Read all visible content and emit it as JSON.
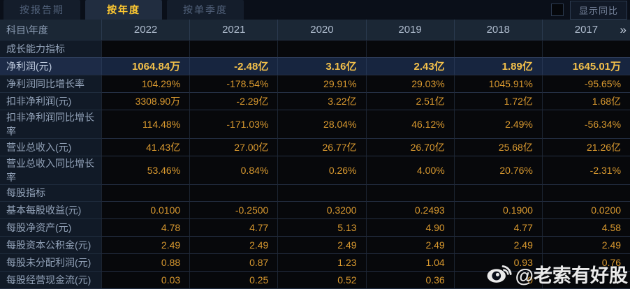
{
  "tabs": [
    {
      "label": "按报告期",
      "active": false
    },
    {
      "label": "按年度",
      "active": true
    },
    {
      "label": "按单季度",
      "active": false
    }
  ],
  "controls": {
    "show_yoy_label": "显示同比",
    "checkbox_checked": false
  },
  "table": {
    "corner_header": "科目\\年度",
    "year_columns": [
      "2022",
      "2021",
      "2020",
      "2019",
      "2018",
      "2017"
    ],
    "more_icon": "»",
    "rows": [
      {
        "type": "section",
        "highlight": false,
        "label": "成长能力指标",
        "values": [
          "",
          "",
          "",
          "",
          "",
          ""
        ]
      },
      {
        "type": "data",
        "highlight": true,
        "label": "净利润(元)",
        "values": [
          "1064.84万",
          "-2.48亿",
          "3.16亿",
          "2.43亿",
          "1.89亿",
          "1645.01万"
        ]
      },
      {
        "type": "data",
        "highlight": false,
        "label": "净利润同比增长率",
        "values": [
          "104.29%",
          "-178.54%",
          "29.91%",
          "29.03%",
          "1045.91%",
          "-95.65%"
        ]
      },
      {
        "type": "data",
        "highlight": false,
        "label": "扣非净利润(元)",
        "values": [
          "3308.90万",
          "-2.29亿",
          "3.22亿",
          "2.51亿",
          "1.72亿",
          "1.68亿"
        ]
      },
      {
        "type": "data",
        "highlight": false,
        "label": "扣非净利润同比增长率",
        "values": [
          "114.48%",
          "-171.03%",
          "28.04%",
          "46.12%",
          "2.49%",
          "-56.34%"
        ]
      },
      {
        "type": "data",
        "highlight": false,
        "label": "营业总收入(元)",
        "values": [
          "41.43亿",
          "27.00亿",
          "26.77亿",
          "26.70亿",
          "25.68亿",
          "21.26亿"
        ]
      },
      {
        "type": "data",
        "highlight": false,
        "label": "营业总收入同比增长率",
        "values": [
          "53.46%",
          "0.84%",
          "0.26%",
          "4.00%",
          "20.76%",
          "-2.31%"
        ]
      },
      {
        "type": "section",
        "highlight": false,
        "label": "每股指标",
        "values": [
          "",
          "",
          "",
          "",
          "",
          ""
        ]
      },
      {
        "type": "data",
        "highlight": false,
        "label": "基本每股收益(元)",
        "values": [
          "0.0100",
          "-0.2500",
          "0.3200",
          "0.2493",
          "0.1900",
          "0.0200"
        ]
      },
      {
        "type": "data",
        "highlight": false,
        "label": "每股净资产(元)",
        "values": [
          "4.78",
          "4.77",
          "5.13",
          "4.90",
          "4.77",
          "4.58"
        ]
      },
      {
        "type": "data",
        "highlight": false,
        "label": "每股资本公积金(元)",
        "values": [
          "2.49",
          "2.49",
          "2.49",
          "2.49",
          "2.49",
          "2.49"
        ]
      },
      {
        "type": "data",
        "highlight": false,
        "label": "每股未分配利润(元)",
        "values": [
          "0.88",
          "0.87",
          "1.23",
          "1.04",
          "0.93",
          "0.76"
        ]
      },
      {
        "type": "data",
        "highlight": false,
        "label": "每股经营现金流(元)",
        "values": [
          "0.03",
          "0.25",
          "0.52",
          "0.36",
          "0",
          ""
        ]
      }
    ]
  },
  "watermark": {
    "text": "@老索有好股"
  },
  "colors": {
    "active_tab_text": "#ffc931",
    "value_orange": "#d9992f",
    "highlight_gold": "#f3c04a",
    "highlight_row_bg": "#17253f",
    "header_bg": "#1b2735",
    "label_col_bg": "#111a27",
    "watermark_text": "#f4f4f4"
  }
}
